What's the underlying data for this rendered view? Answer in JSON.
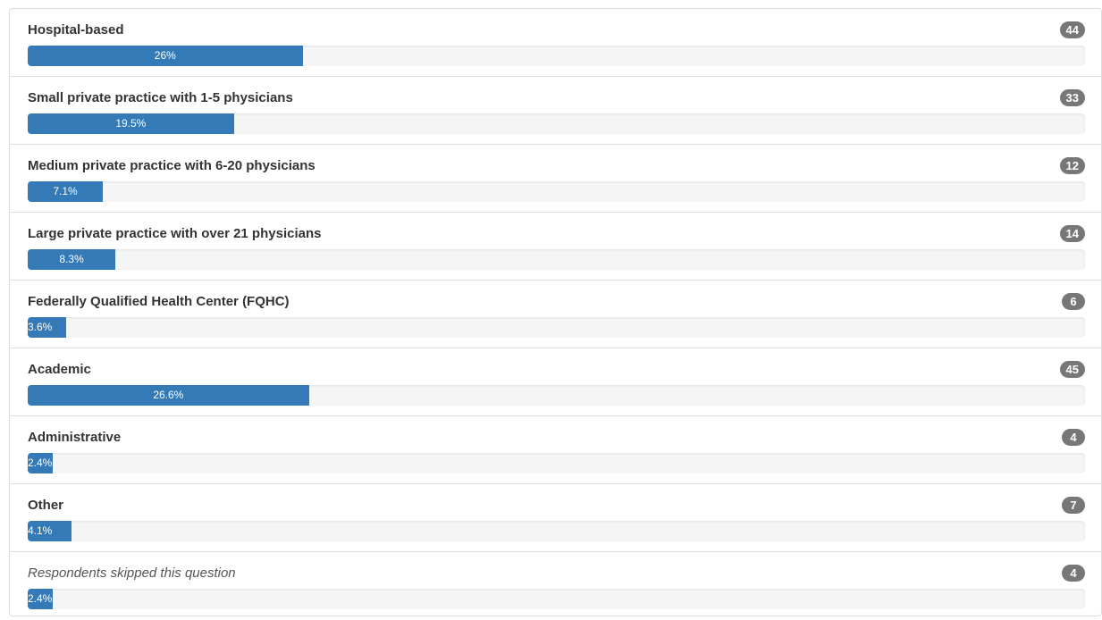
{
  "results": {
    "items": [
      {
        "label": "Hospital-based",
        "count": "44",
        "percent_label": "26%",
        "percent": 26,
        "italic": false
      },
      {
        "label": "Small private practice with 1-5 physicians",
        "count": "33",
        "percent_label": "19.5%",
        "percent": 19.5,
        "italic": false
      },
      {
        "label": "Medium private practice with 6-20 physicians",
        "count": "12",
        "percent_label": "7.1%",
        "percent": 7.1,
        "italic": false
      },
      {
        "label": "Large private practice with over 21 physicians",
        "count": "14",
        "percent_label": "8.3%",
        "percent": 8.3,
        "italic": false
      },
      {
        "label": "Federally Qualified Health Center (FQHC)",
        "count": "6",
        "percent_label": "3.6%",
        "percent": 3.6,
        "italic": false
      },
      {
        "label": "Academic",
        "count": "45",
        "percent_label": "26.6%",
        "percent": 26.6,
        "italic": false
      },
      {
        "label": "Administrative",
        "count": "4",
        "percent_label": "2.4%",
        "percent": 2.4,
        "italic": false
      },
      {
        "label": "Other",
        "count": "7",
        "percent_label": "4.1%",
        "percent": 4.1,
        "italic": false
      },
      {
        "label": "Respondents skipped this question",
        "count": "4",
        "percent_label": "2.4%",
        "percent": 2.4,
        "italic": true
      }
    ],
    "colors": {
      "bar_fill": "#337ab7",
      "badge": "#777777",
      "track": "#f5f5f5"
    }
  }
}
